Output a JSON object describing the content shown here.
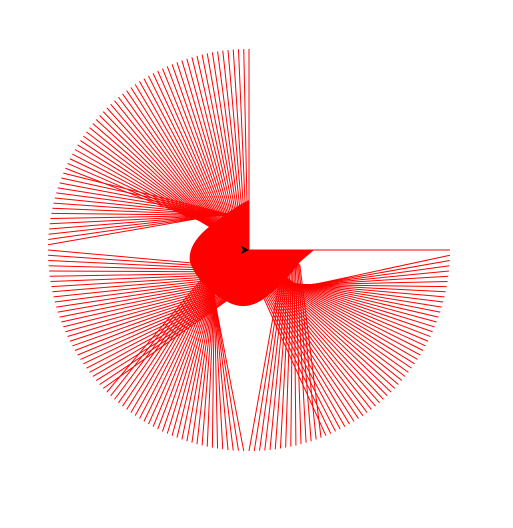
{
  "drawing": {
    "stroke_color": "#ff0000",
    "cursor_color": "#000000",
    "cursor_icon": "turtle-arrow-icon",
    "sweep_degrees": 270,
    "line_count": 180
  }
}
